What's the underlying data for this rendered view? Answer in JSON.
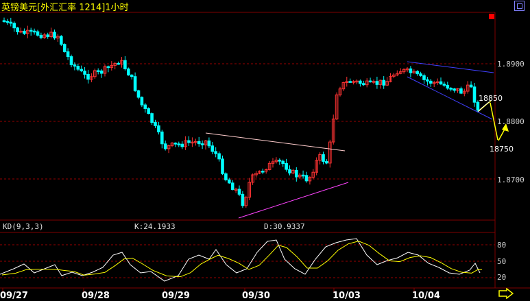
{
  "window": {
    "title": "英镑美元[外汇汇率 1214]1小时"
  },
  "price_axis": {
    "labels": [
      "1.8900",
      "1.8800",
      "1.8700"
    ]
  },
  "indicator": {
    "name": "KD(9,3,3)",
    "k_text": "K:24.1933",
    "d_text": "D:30.9337",
    "levels": [
      "80",
      "50",
      "20"
    ]
  },
  "annotations": {
    "upper_target": "18850",
    "lower_target": "18750"
  },
  "time_axis": {
    "labels": [
      "09/27",
      "09/28",
      "09/29",
      "09/30",
      "10/03",
      "10/04"
    ]
  },
  "colors": {
    "background": "#000000",
    "up_candle": "#ff3333",
    "down_candle": "#00ffff",
    "grid": "#990000",
    "k_line": "#ffffff",
    "d_line": "#ffff00",
    "title": "#ffff00",
    "nav_arrow": "#ffff00"
  },
  "chart_data": {
    "type": "candlestick",
    "symbol": "英镑美元",
    "interval": "1小时",
    "price_range": [
      1.865,
      1.897
    ],
    "gridlines": [
      1.89,
      1.88,
      1.87
    ],
    "approx_close_path": [
      {
        "x": "09/27",
        "close": 1.894
      },
      {
        "x": "09/28",
        "close": 1.892
      },
      {
        "x": "09/28",
        "close": 1.888
      },
      {
        "x": "09/29",
        "close": 1.88
      },
      {
        "x": "09/29",
        "close": 1.878
      },
      {
        "x": "09/30",
        "close": 1.868
      },
      {
        "x": "09/30",
        "close": 1.873
      },
      {
        "x": "10/03",
        "close": 1.887
      },
      {
        "x": "10/04",
        "close": 1.889
      },
      {
        "x": "10/04",
        "close": 1.882
      }
    ],
    "indicator": {
      "name": "KD",
      "params": [
        9,
        3,
        3
      ],
      "K": 24.1933,
      "D": 30.9337
    }
  }
}
